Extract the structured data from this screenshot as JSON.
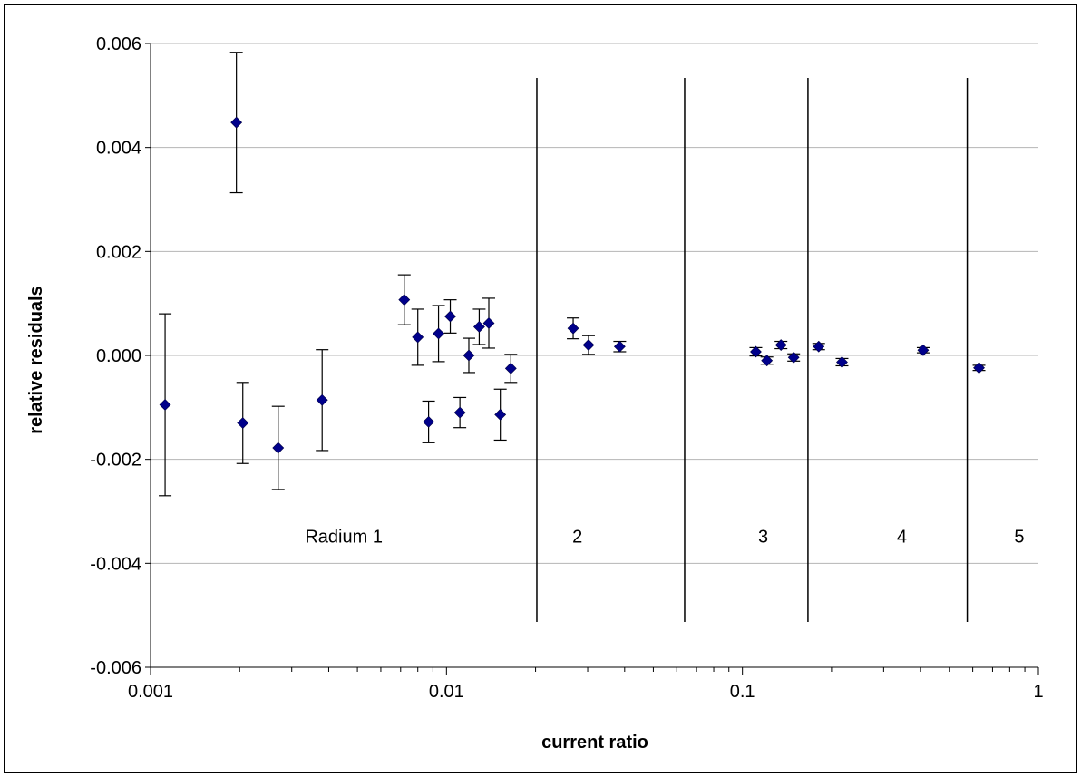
{
  "chart_data": {
    "type": "scatter",
    "xlabel": "current ratio",
    "ylabel": "relative residuals",
    "xscale": "log",
    "xlim": [
      0.001,
      1
    ],
    "ylim": [
      -0.006,
      0.006
    ],
    "grid": "horizontal",
    "x_ticks": [
      "0.001",
      "0.01",
      "0.1",
      "1"
    ],
    "y_ticks": [
      "-0.006",
      "-0.004",
      "-0.002",
      "0.000",
      "0.002",
      "0.004",
      "0.006"
    ],
    "marker": "diamond",
    "marker_color": "#00008B",
    "points": [
      {
        "x": 0.00112,
        "y": -0.00095,
        "err": 0.00175
      },
      {
        "x": 0.00195,
        "y": 0.00448,
        "err": 0.00135
      },
      {
        "x": 0.00205,
        "y": -0.0013,
        "err": 0.00078
      },
      {
        "x": 0.0027,
        "y": -0.00178,
        "err": 0.0008
      },
      {
        "x": 0.0038,
        "y": -0.00086,
        "err": 0.00097
      },
      {
        "x": 0.0072,
        "y": 0.00107,
        "err": 0.00048
      },
      {
        "x": 0.008,
        "y": 0.00035,
        "err": 0.00054
      },
      {
        "x": 0.0087,
        "y": -0.00128,
        "err": 0.0004
      },
      {
        "x": 0.0094,
        "y": 0.00042,
        "err": 0.00054
      },
      {
        "x": 0.0103,
        "y": 0.00075,
        "err": 0.00032
      },
      {
        "x": 0.0111,
        "y": -0.0011,
        "err": 0.00029
      },
      {
        "x": 0.0119,
        "y": 0.0,
        "err": 0.00033
      },
      {
        "x": 0.0129,
        "y": 0.00055,
        "err": 0.00034
      },
      {
        "x": 0.0139,
        "y": 0.00062,
        "err": 0.00048
      },
      {
        "x": 0.0152,
        "y": -0.00114,
        "err": 0.00049
      },
      {
        "x": 0.0165,
        "y": -0.00025,
        "err": 0.00027
      },
      {
        "x": 0.0268,
        "y": 0.00052,
        "err": 0.0002
      },
      {
        "x": 0.0302,
        "y": 0.0002,
        "err": 0.00018
      },
      {
        "x": 0.0385,
        "y": 0.00017,
        "err": 0.0001
      },
      {
        "x": 0.111,
        "y": 7e-05,
        "err": 8e-05
      },
      {
        "x": 0.121,
        "y": -0.0001,
        "err": 7e-05
      },
      {
        "x": 0.135,
        "y": 0.0002,
        "err": 7e-05
      },
      {
        "x": 0.149,
        "y": -4e-05,
        "err": 7e-05
      },
      {
        "x": 0.181,
        "y": 0.00017,
        "err": 6e-05
      },
      {
        "x": 0.217,
        "y": -0.00013,
        "err": 7e-05
      },
      {
        "x": 0.408,
        "y": 0.0001,
        "err": 5e-05
      },
      {
        "x": 0.63,
        "y": -0.00024,
        "err": 5e-05
      }
    ],
    "dividers_x": [
      0.0202,
      0.0638,
      0.1665,
      0.575
    ],
    "region_labels": [
      {
        "text": "Radium 1",
        "x": 0.0045,
        "y": -0.0036
      },
      {
        "text": "2",
        "x": 0.0277,
        "y": -0.0036
      },
      {
        "text": "3",
        "x": 0.1175,
        "y": -0.0036
      },
      {
        "text": "4",
        "x": 0.3455,
        "y": -0.0036
      },
      {
        "text": "5",
        "x": 0.862,
        "y": -0.0036
      }
    ]
  }
}
